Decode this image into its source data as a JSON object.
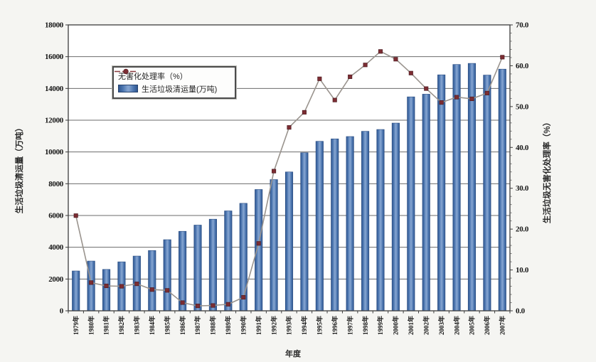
{
  "chart_data": {
    "type": "bar",
    "title": "",
    "categories": [
      "1979年",
      "1980年",
      "1981年",
      "1982年",
      "1983年",
      "1984年",
      "1985年",
      "1986年",
      "1987年",
      "1988年",
      "1989年",
      "1990年",
      "1991年",
      "1992年",
      "1993年",
      "1994年",
      "1995年",
      "1996年",
      "1997年",
      "1998年",
      "1999年",
      "2000年",
      "2001年",
      "2002年",
      "2003年",
      "2004年",
      "2005年",
      "2006年",
      "2007年"
    ],
    "series": [
      {
        "name": "无害化处理率（%）",
        "chart_type": "line",
        "axis": "right",
        "line_color": "#9a948e",
        "marker_color": "#7c2d33",
        "values": [
          23.3,
          6.9,
          6.1,
          6.0,
          6.6,
          5.2,
          5.0,
          2.0,
          1.2,
          1.3,
          1.6,
          3.3,
          16.5,
          34.2,
          44.9,
          48.6,
          56.8,
          51.6,
          57.3,
          60.2,
          63.5,
          61.6,
          58.2,
          54.4,
          51.0,
          52.3,
          51.9,
          53.3,
          62.1
        ]
      },
      {
        "name": "生活垃圾清运量(万吨)",
        "chart_type": "bar",
        "axis": "left",
        "bar_color": "#4a74ae",
        "values": [
          2508,
          3132,
          2606,
          3083,
          3446,
          3797,
          4477,
          5005,
          5397,
          5768,
          6291,
          6767,
          7637,
          8262,
          8742,
          9952,
          10671,
          10825,
          10971,
          11301,
          11415,
          11819,
          13470,
          13638,
          14857,
          15509,
          15577,
          14841,
          15215
        ]
      }
    ],
    "axes": {
      "left": {
        "title": "生活垃圾清运量（万吨）",
        "min": 0,
        "max": 18000,
        "step": 2000,
        "ticks": [
          "0",
          "2000",
          "4000",
          "6000",
          "8000",
          "10000",
          "12000",
          "14000",
          "16000",
          "18000"
        ]
      },
      "right": {
        "title": "生活垃圾无害化处理率（%）",
        "min": 0,
        "max": 70,
        "step": 10,
        "ticks": [
          "0.0",
          "10.0",
          "20.0",
          "30.0",
          "40.0",
          "50.0",
          "60.0",
          "70.0"
        ]
      },
      "x": {
        "title": "年度"
      }
    },
    "grid": "horizontal",
    "legend_position": "inside-top-left"
  }
}
